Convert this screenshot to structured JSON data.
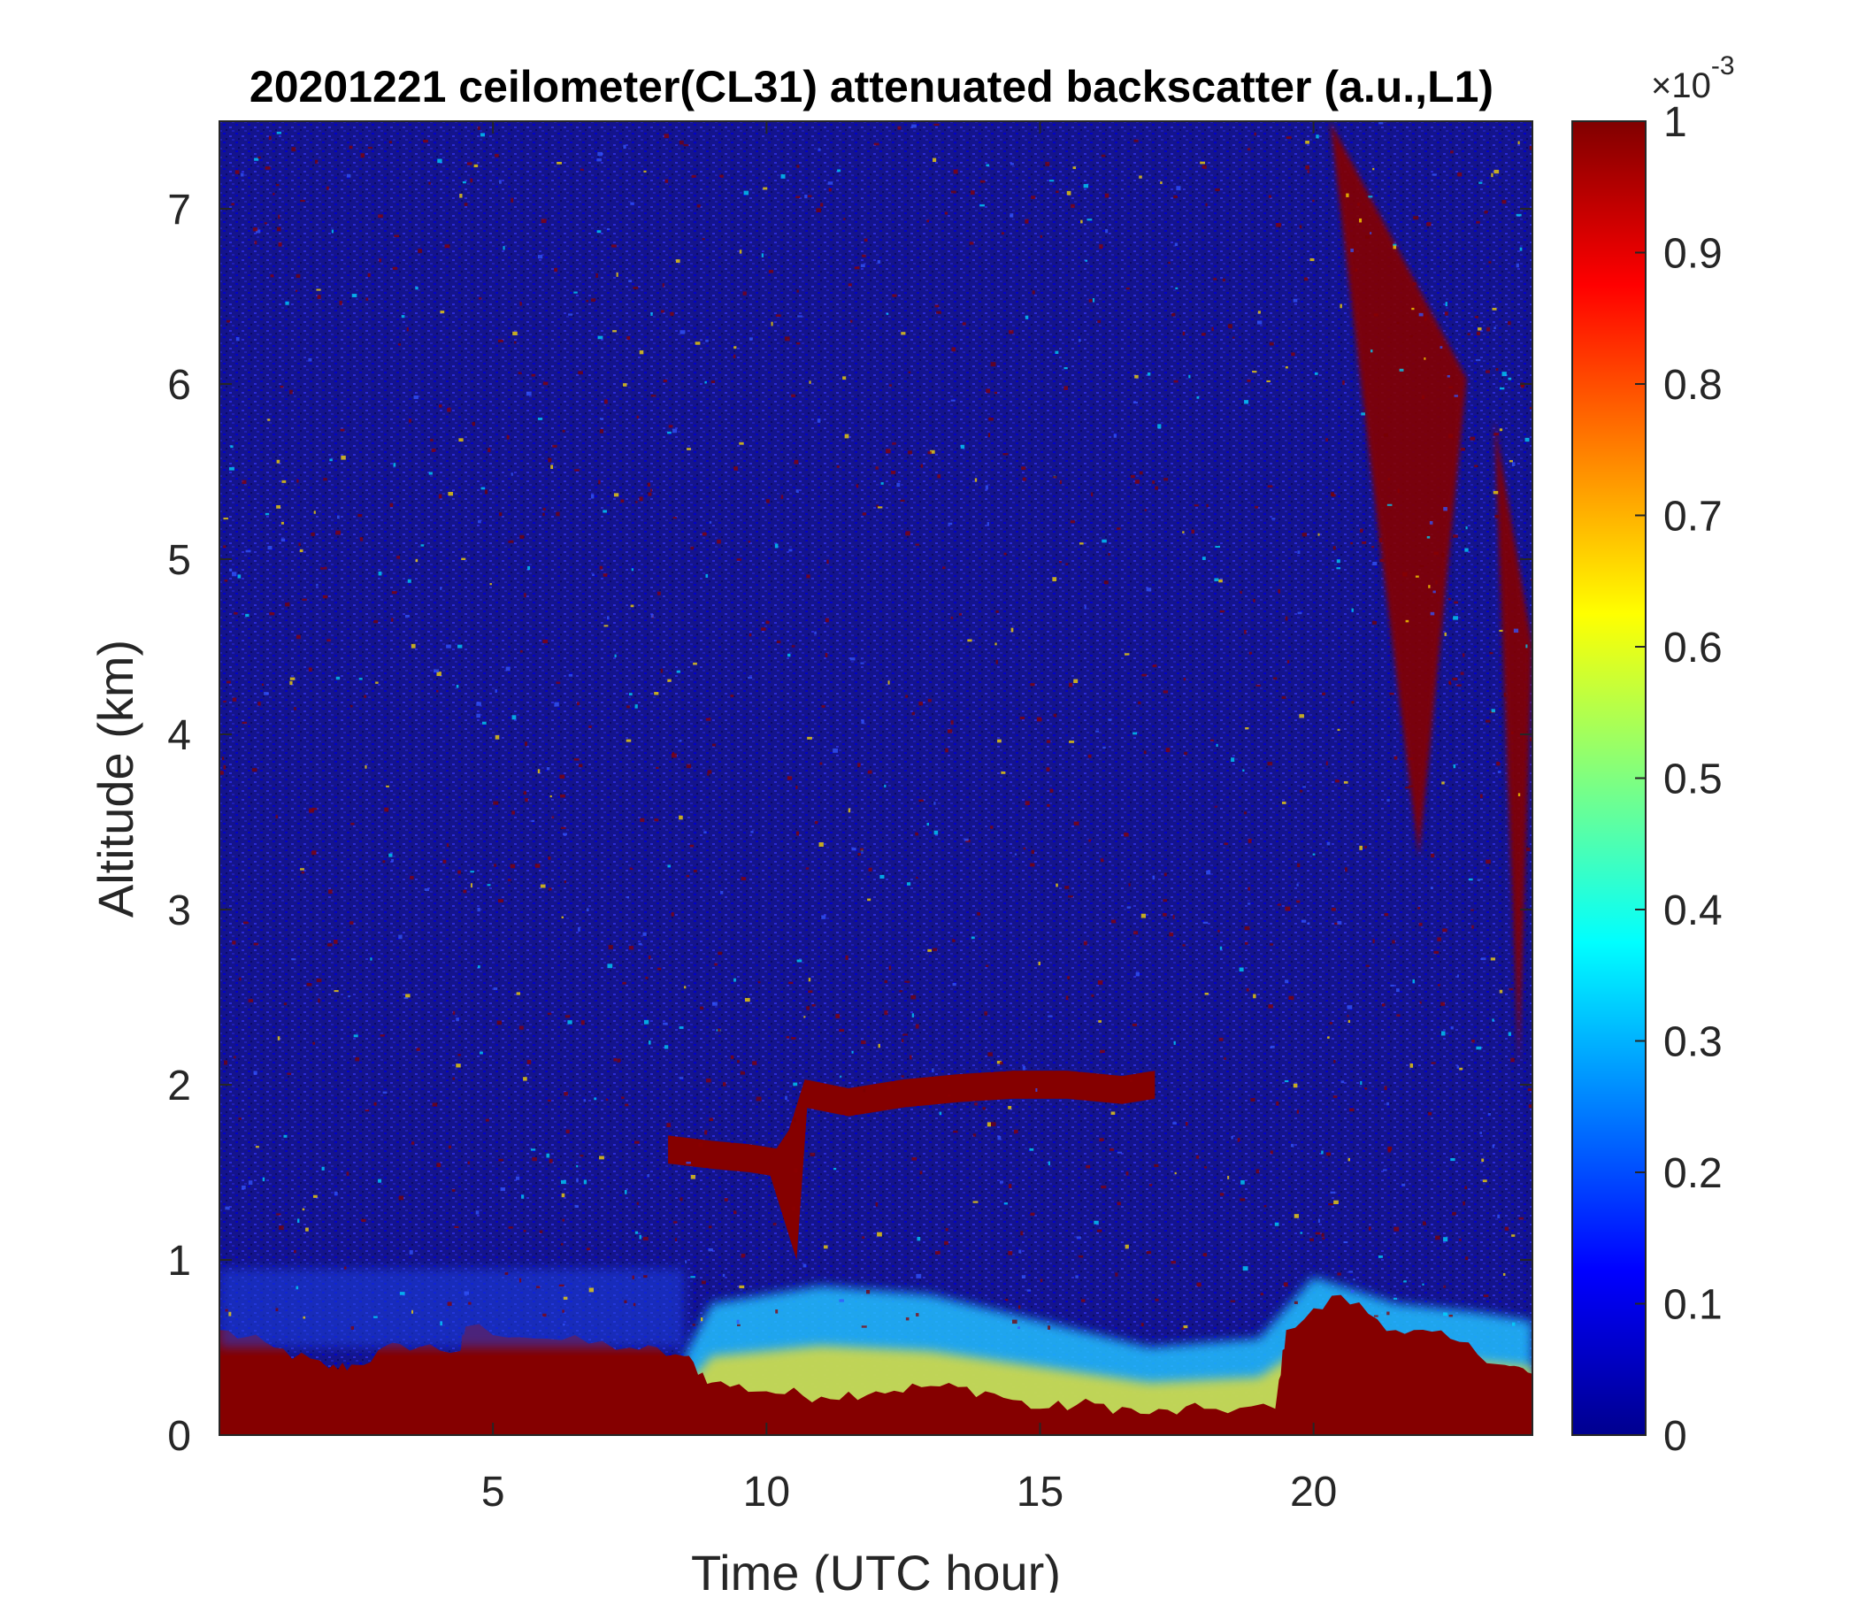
{
  "chart_data": {
    "type": "heatmap",
    "title": "20201221 ceilometer(CL31) attenuated backscatter (a.u.,L1)",
    "xlabel": "Time (UTC hour)",
    "ylabel": "Altitude (km)",
    "xlim": [
      0,
      24
    ],
    "ylim": [
      0,
      7.5
    ],
    "xticks": [
      5,
      10,
      15,
      20
    ],
    "xtick_labels": [
      "5",
      "10",
      "15",
      "20"
    ],
    "yticks": [
      0,
      1,
      2,
      3,
      4,
      5,
      6,
      7
    ],
    "ytick_labels": [
      "0",
      "1",
      "2",
      "3",
      "4",
      "5",
      "6",
      "7"
    ],
    "colorbar": {
      "colormap": "jet",
      "range": [
        0,
        0.001
      ],
      "ticks": [
        0,
        0.1,
        0.2,
        0.3,
        0.4,
        0.5,
        0.6,
        0.7,
        0.8,
        0.9,
        1
      ],
      "tick_labels": [
        "0",
        "0.1",
        "0.2",
        "0.3",
        "0.4",
        "0.5",
        "0.6",
        "0.7",
        "0.8",
        "0.9",
        "1"
      ],
      "multiplier_base": "×10",
      "multiplier_exp": "-3"
    },
    "features": {
      "surface_layer_top_km": [
        [
          0,
          0.6
        ],
        [
          1,
          0.5
        ],
        [
          2,
          0.38
        ],
        [
          2.5,
          0.4
        ],
        [
          3.3,
          0.52
        ],
        [
          4.4,
          0.48
        ],
        [
          4.5,
          0.62
        ],
        [
          6,
          0.55
        ],
        [
          7.5,
          0.5
        ],
        [
          8.5,
          0.45
        ],
        [
          9,
          0.3
        ],
        [
          10,
          0.25
        ],
        [
          11,
          0.22
        ],
        [
          12,
          0.25
        ],
        [
          13,
          0.28
        ],
        [
          14,
          0.25
        ],
        [
          15,
          0.15
        ],
        [
          16,
          0.18
        ],
        [
          17,
          0.12
        ],
        [
          18,
          0.15
        ],
        [
          19.3,
          0.15
        ],
        [
          19.5,
          0.6
        ],
        [
          20.5,
          0.8
        ],
        [
          21.5,
          0.6
        ],
        [
          22.5,
          0.55
        ],
        [
          23.5,
          0.4
        ],
        [
          24,
          0.35
        ]
      ],
      "aerosol_layer_top_km": [
        [
          8.5,
          0.45
        ],
        [
          9,
          0.75
        ],
        [
          11,
          0.85
        ],
        [
          13,
          0.8
        ],
        [
          15,
          0.65
        ],
        [
          17,
          0.5
        ],
        [
          19,
          0.55
        ],
        [
          20,
          0.9
        ],
        [
          21.5,
          0.75
        ],
        [
          23,
          0.7
        ],
        [
          24,
          0.65
        ]
      ],
      "cloud_layer_km": [
        [
          8.2,
          1.63
        ],
        [
          9,
          1.6
        ],
        [
          9.7,
          1.58
        ],
        [
          10.3,
          1.55
        ],
        [
          10.7,
          1.95
        ],
        [
          11.5,
          1.9
        ],
        [
          12.5,
          1.95
        ],
        [
          13.5,
          1.98
        ],
        [
          14.5,
          2.0
        ],
        [
          15.5,
          2.0
        ],
        [
          16.5,
          1.97
        ],
        [
          17.1,
          2.0
        ]
      ],
      "upper_cloud_streaks": [
        {
          "x0": 20.3,
          "x1": 22.8,
          "top_km": 7.5,
          "bottom_km": 3.3
        },
        {
          "x0": 23.3,
          "x1": 24,
          "top_km": 5.8,
          "bottom_km": 2.1
        }
      ]
    }
  }
}
